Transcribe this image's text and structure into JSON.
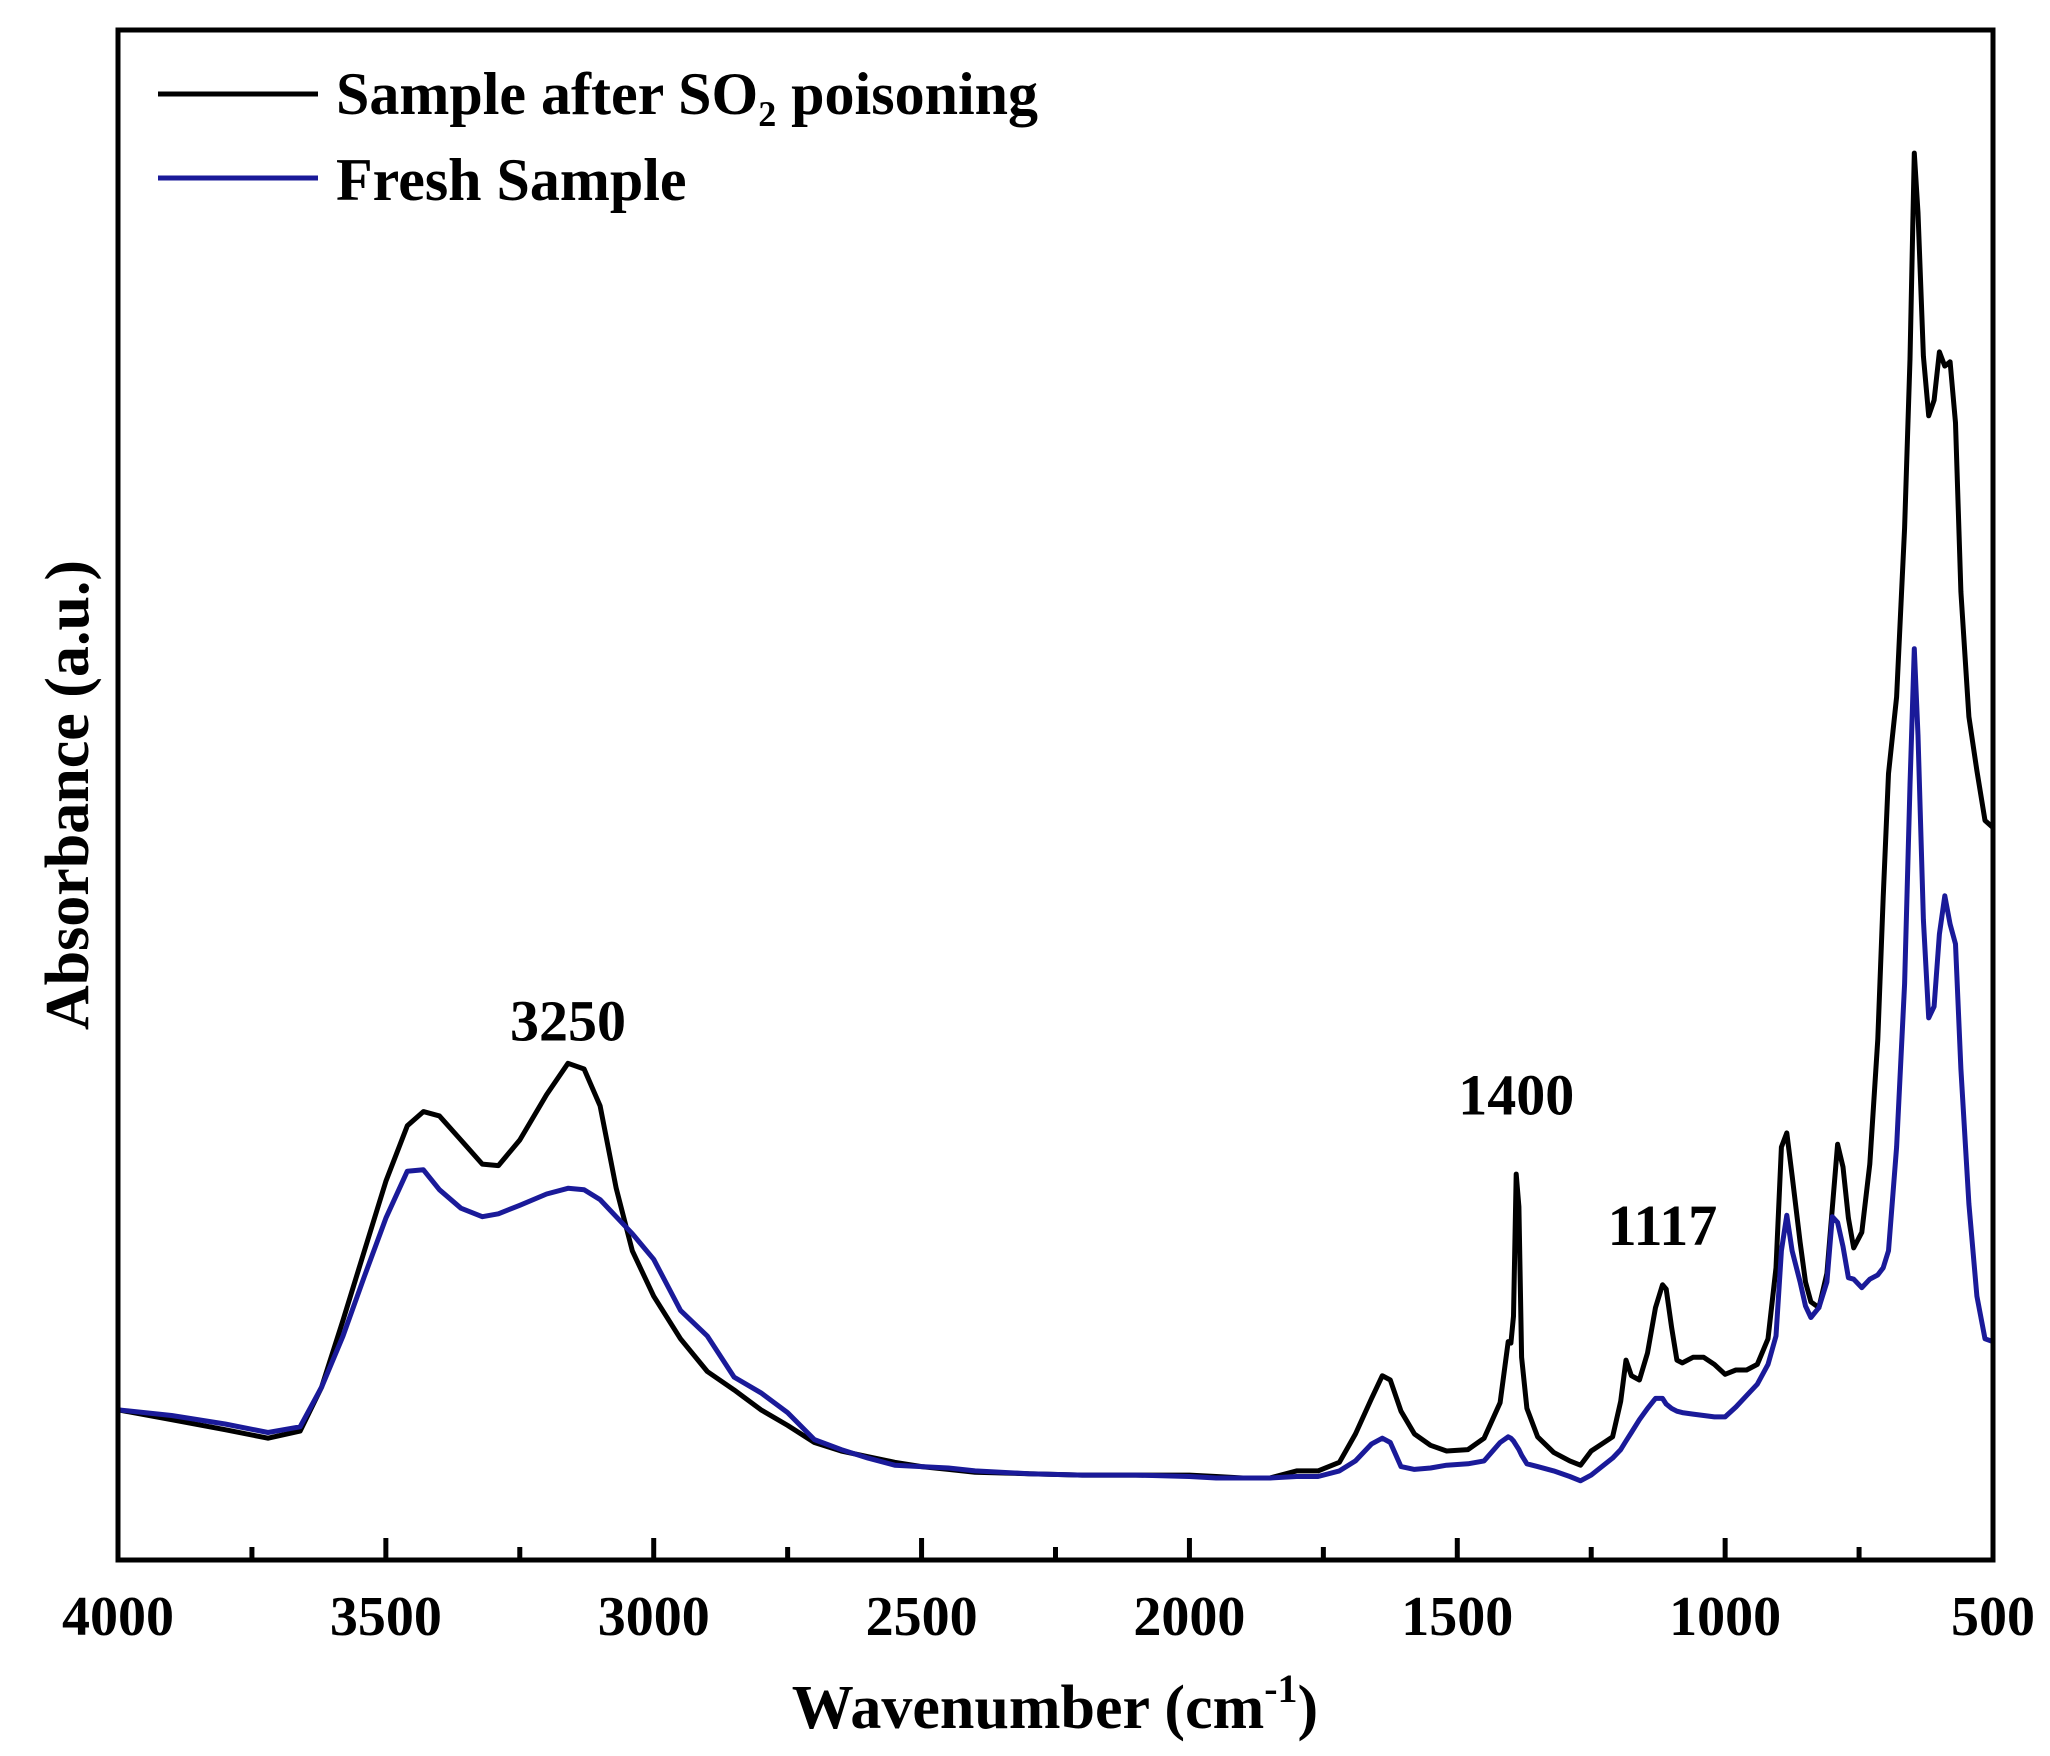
{
  "chart_data": {
    "type": "line",
    "title": "",
    "xlabel": "Wavenumber (cm",
    "xlabel_sup": "-1",
    "xlabel_close": ")",
    "ylabel": "Absorbance (a.u.)",
    "xlim": [
      4000,
      500
    ],
    "ylim": [
      0,
      100
    ],
    "x_major_ticks": [
      4000,
      3500,
      3000,
      2500,
      2000,
      1500,
      1000,
      500
    ],
    "x_tick_labels": [
      "4000",
      "3500",
      "3000",
      "2500",
      "2000",
      "1500",
      "1000",
      "500"
    ],
    "x_minor_ticks": [
      3750,
      3250,
      2750,
      2250,
      1750,
      1250,
      750
    ],
    "grid": false,
    "legend_position": "top-left",
    "series": [
      {
        "name": "Sample after SO₂ poisoning",
        "color": "#000000",
        "points": [
          [
            4000,
            6.0
          ],
          [
            3900,
            5.3
          ],
          [
            3800,
            4.6
          ],
          [
            3720,
            4.0
          ],
          [
            3660,
            4.5
          ],
          [
            3620,
            7.6
          ],
          [
            3580,
            12.3
          ],
          [
            3540,
            17.2
          ],
          [
            3500,
            22.1
          ],
          [
            3460,
            26.0
          ],
          [
            3430,
            27.0
          ],
          [
            3400,
            26.7
          ],
          [
            3360,
            25.0
          ],
          [
            3320,
            23.3
          ],
          [
            3290,
            23.2
          ],
          [
            3250,
            25.0
          ],
          [
            3200,
            28.2
          ],
          [
            3160,
            30.4
          ],
          [
            3130,
            30.0
          ],
          [
            3100,
            27.4
          ],
          [
            3070,
            21.6
          ],
          [
            3040,
            17.2
          ],
          [
            3000,
            14.0
          ],
          [
            2950,
            11.0
          ],
          [
            2900,
            8.7
          ],
          [
            2850,
            7.4
          ],
          [
            2800,
            6.0
          ],
          [
            2750,
            4.9
          ],
          [
            2700,
            3.7
          ],
          [
            2650,
            3.1
          ],
          [
            2600,
            2.7
          ],
          [
            2550,
            2.3
          ],
          [
            2500,
            2.0
          ],
          [
            2450,
            1.8
          ],
          [
            2400,
            1.6
          ],
          [
            2300,
            1.5
          ],
          [
            2200,
            1.4
          ],
          [
            2100,
            1.4
          ],
          [
            2000,
            1.4
          ],
          [
            1950,
            1.3
          ],
          [
            1900,
            1.2
          ],
          [
            1850,
            1.2
          ],
          [
            1800,
            1.7
          ],
          [
            1760,
            1.7
          ],
          [
            1720,
            2.3
          ],
          [
            1690,
            4.3
          ],
          [
            1660,
            6.8
          ],
          [
            1640,
            8.4
          ],
          [
            1625,
            8.1
          ],
          [
            1605,
            5.9
          ],
          [
            1580,
            4.3
          ],
          [
            1550,
            3.5
          ],
          [
            1520,
            3.1
          ],
          [
            1480,
            3.2
          ],
          [
            1450,
            4.0
          ],
          [
            1420,
            6.5
          ],
          [
            1405,
            10.8
          ],
          [
            1400,
            10.7
          ],
          [
            1395,
            12.6
          ],
          [
            1390,
            22.6
          ],
          [
            1385,
            20.3
          ],
          [
            1380,
            9.7
          ],
          [
            1370,
            6.1
          ],
          [
            1350,
            4.1
          ],
          [
            1320,
            3.0
          ],
          [
            1290,
            2.4
          ],
          [
            1270,
            2.1
          ],
          [
            1250,
            3.1
          ],
          [
            1230,
            3.6
          ],
          [
            1210,
            4.1
          ],
          [
            1195,
            6.6
          ],
          [
            1185,
            9.5
          ],
          [
            1175,
            8.4
          ],
          [
            1160,
            8.1
          ],
          [
            1145,
            10.0
          ],
          [
            1130,
            13.2
          ],
          [
            1117,
            14.8
          ],
          [
            1110,
            14.5
          ],
          [
            1100,
            11.8
          ],
          [
            1090,
            9.5
          ],
          [
            1080,
            9.3
          ],
          [
            1060,
            9.7
          ],
          [
            1040,
            9.7
          ],
          [
            1020,
            9.2
          ],
          [
            1000,
            8.5
          ],
          [
            980,
            8.8
          ],
          [
            960,
            8.8
          ],
          [
            940,
            9.2
          ],
          [
            920,
            11.0
          ],
          [
            905,
            16.0
          ],
          [
            895,
            24.5
          ],
          [
            885,
            25.5
          ],
          [
            875,
            22.5
          ],
          [
            860,
            17.8
          ],
          [
            850,
            15.0
          ],
          [
            840,
            13.6
          ],
          [
            825,
            13.2
          ],
          [
            810,
            15.6
          ],
          [
            800,
            20.2
          ],
          [
            790,
            24.7
          ],
          [
            780,
            23.1
          ],
          [
            770,
            19.5
          ],
          [
            760,
            17.4
          ],
          [
            745,
            18.5
          ],
          [
            730,
            23.3
          ],
          [
            715,
            32.1
          ],
          [
            705,
            42.1
          ],
          [
            695,
            50.8
          ],
          [
            680,
            56.2
          ],
          [
            665,
            68.1
          ],
          [
            655,
            80.0
          ],
          [
            647,
            94.5
          ],
          [
            640,
            90.3
          ],
          [
            630,
            80.2
          ],
          [
            620,
            76.0
          ],
          [
            610,
            77.1
          ],
          [
            600,
            80.5
          ],
          [
            590,
            79.5
          ],
          [
            580,
            79.8
          ],
          [
            570,
            75.5
          ],
          [
            560,
            63.6
          ],
          [
            545,
            54.8
          ],
          [
            530,
            51.0
          ],
          [
            515,
            47.5
          ],
          [
            500,
            47.0
          ]
        ]
      },
      {
        "name": "Fresh Sample",
        "color": "#1a1a99",
        "points": [
          [
            4000,
            6.0
          ],
          [
            3900,
            5.6
          ],
          [
            3800,
            5.0
          ],
          [
            3720,
            4.4
          ],
          [
            3660,
            4.8
          ],
          [
            3620,
            7.6
          ],
          [
            3580,
            11.2
          ],
          [
            3540,
            15.4
          ],
          [
            3500,
            19.5
          ],
          [
            3460,
            22.8
          ],
          [
            3430,
            22.9
          ],
          [
            3400,
            21.5
          ],
          [
            3360,
            20.2
          ],
          [
            3320,
            19.6
          ],
          [
            3290,
            19.8
          ],
          [
            3250,
            20.4
          ],
          [
            3200,
            21.2
          ],
          [
            3160,
            21.6
          ],
          [
            3130,
            21.5
          ],
          [
            3100,
            20.8
          ],
          [
            3070,
            19.6
          ],
          [
            3040,
            18.4
          ],
          [
            3000,
            16.6
          ],
          [
            2950,
            13.0
          ],
          [
            2900,
            11.2
          ],
          [
            2850,
            8.3
          ],
          [
            2800,
            7.2
          ],
          [
            2750,
            5.8
          ],
          [
            2700,
            3.9
          ],
          [
            2650,
            3.2
          ],
          [
            2600,
            2.6
          ],
          [
            2550,
            2.1
          ],
          [
            2500,
            2.0
          ],
          [
            2450,
            1.9
          ],
          [
            2400,
            1.7
          ],
          [
            2300,
            1.5
          ],
          [
            2200,
            1.4
          ],
          [
            2100,
            1.4
          ],
          [
            2000,
            1.3
          ],
          [
            1950,
            1.2
          ],
          [
            1900,
            1.2
          ],
          [
            1850,
            1.2
          ],
          [
            1800,
            1.3
          ],
          [
            1760,
            1.3
          ],
          [
            1720,
            1.7
          ],
          [
            1690,
            2.4
          ],
          [
            1660,
            3.6
          ],
          [
            1640,
            4.0
          ],
          [
            1625,
            3.7
          ],
          [
            1605,
            2.0
          ],
          [
            1580,
            1.8
          ],
          [
            1550,
            1.9
          ],
          [
            1520,
            2.1
          ],
          [
            1480,
            2.2
          ],
          [
            1450,
            2.4
          ],
          [
            1420,
            3.7
          ],
          [
            1405,
            4.1
          ],
          [
            1400,
            4.0
          ],
          [
            1395,
            3.8
          ],
          [
            1390,
            3.5
          ],
          [
            1385,
            3.2
          ],
          [
            1380,
            2.8
          ],
          [
            1370,
            2.2
          ],
          [
            1350,
            2.0
          ],
          [
            1320,
            1.7
          ],
          [
            1290,
            1.3
          ],
          [
            1270,
            1.0
          ],
          [
            1250,
            1.4
          ],
          [
            1230,
            2.0
          ],
          [
            1210,
            2.6
          ],
          [
            1195,
            3.2
          ],
          [
            1185,
            3.8
          ],
          [
            1175,
            4.4
          ],
          [
            1160,
            5.3
          ],
          [
            1145,
            6.1
          ],
          [
            1130,
            6.8
          ],
          [
            1117,
            6.8
          ],
          [
            1110,
            6.4
          ],
          [
            1100,
            6.1
          ],
          [
            1090,
            5.9
          ],
          [
            1080,
            5.8
          ],
          [
            1060,
            5.7
          ],
          [
            1040,
            5.6
          ],
          [
            1020,
            5.5
          ],
          [
            1000,
            5.5
          ],
          [
            980,
            6.2
          ],
          [
            960,
            7.0
          ],
          [
            940,
            7.8
          ],
          [
            920,
            9.2
          ],
          [
            905,
            11.2
          ],
          [
            895,
            17.2
          ],
          [
            885,
            19.7
          ],
          [
            875,
            17.2
          ],
          [
            860,
            15.0
          ],
          [
            850,
            13.3
          ],
          [
            840,
            12.5
          ],
          [
            825,
            13.2
          ],
          [
            810,
            15.0
          ],
          [
            800,
            19.6
          ],
          [
            790,
            19.2
          ],
          [
            780,
            17.5
          ],
          [
            770,
            15.3
          ],
          [
            760,
            15.2
          ],
          [
            745,
            14.6
          ],
          [
            730,
            15.2
          ],
          [
            715,
            15.5
          ],
          [
            705,
            16.0
          ],
          [
            695,
            17.2
          ],
          [
            680,
            24.5
          ],
          [
            665,
            36.0
          ],
          [
            655,
            50.0
          ],
          [
            647,
            59.6
          ],
          [
            640,
            53.5
          ],
          [
            630,
            40.5
          ],
          [
            620,
            33.6
          ],
          [
            610,
            34.4
          ],
          [
            600,
            39.5
          ],
          [
            590,
            42.2
          ],
          [
            580,
            40.2
          ],
          [
            570,
            38.8
          ],
          [
            560,
            30.0
          ],
          [
            545,
            20.5
          ],
          [
            530,
            14.0
          ],
          [
            515,
            11.0
          ],
          [
            500,
            10.8
          ]
        ]
      }
    ],
    "annotations": [
      {
        "text": "3250",
        "x": 3160,
        "y": 32.0
      },
      {
        "text": "1400",
        "x": 1390,
        "y": 26.8
      },
      {
        "text": "1117",
        "x": 1117,
        "y": 17.6
      }
    ]
  }
}
